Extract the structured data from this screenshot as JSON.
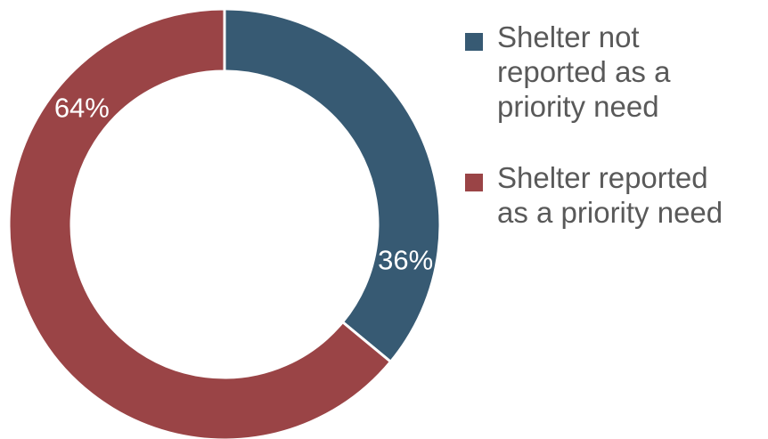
{
  "chart_data": {
    "type": "pie",
    "variant": "donut",
    "title": "",
    "categories": [
      "Shelter not reported as a priority need",
      "Shelter reported as a priority need"
    ],
    "values": [
      36,
      64
    ],
    "unit": "%",
    "labels": [
      "36%",
      "64%"
    ],
    "colors": [
      "#375a73",
      "#9a4446"
    ],
    "start_angle": "12 o'clock",
    "direction": "clockwise",
    "legend_position": "right"
  },
  "legend": {
    "items": [
      {
        "label_lines": [
          "Shelter not",
          "reported as a",
          "priority need"
        ],
        "color": "#375a73"
      },
      {
        "label_lines": [
          "Shelter reported",
          "as a priority need"
        ],
        "color": "#9a4446"
      }
    ]
  }
}
